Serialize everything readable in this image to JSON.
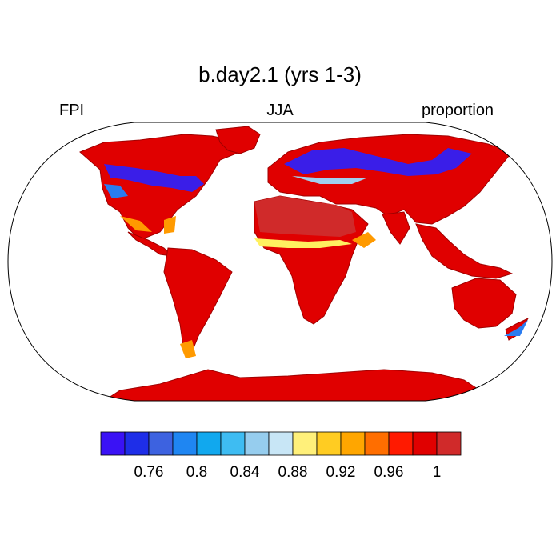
{
  "title": "b.day2.1 (yrs 1-3)",
  "left_label": "FPI",
  "center_label": "JJA",
  "right_label": "proportion",
  "map": {
    "projection": "robinson",
    "land_base_color": "#e00000",
    "highlight_colors": {
      "low_high_latitude": "#3a1ee8",
      "mid_blue": "#2a7cf0",
      "light_blue": "#a0d0f0",
      "yellow": "#fff060",
      "orange": "#ff9a00",
      "dark_red": "#d02a2a"
    }
  },
  "colorbar": {
    "colors": [
      "#3a12f5",
      "#1e2ee8",
      "#3d62e0",
      "#1f86f2",
      "#11a8ee",
      "#3ebcf2",
      "#96cdee",
      "#c8e6f6",
      "#fff07a",
      "#ffcc22",
      "#ffa600",
      "#ff6e00",
      "#ff1a00",
      "#e00000",
      "#d02a2a"
    ],
    "tick_labels": [
      "0.76",
      "0.8",
      "0.84",
      "0.88",
      "0.92",
      "0.96",
      "1"
    ]
  }
}
